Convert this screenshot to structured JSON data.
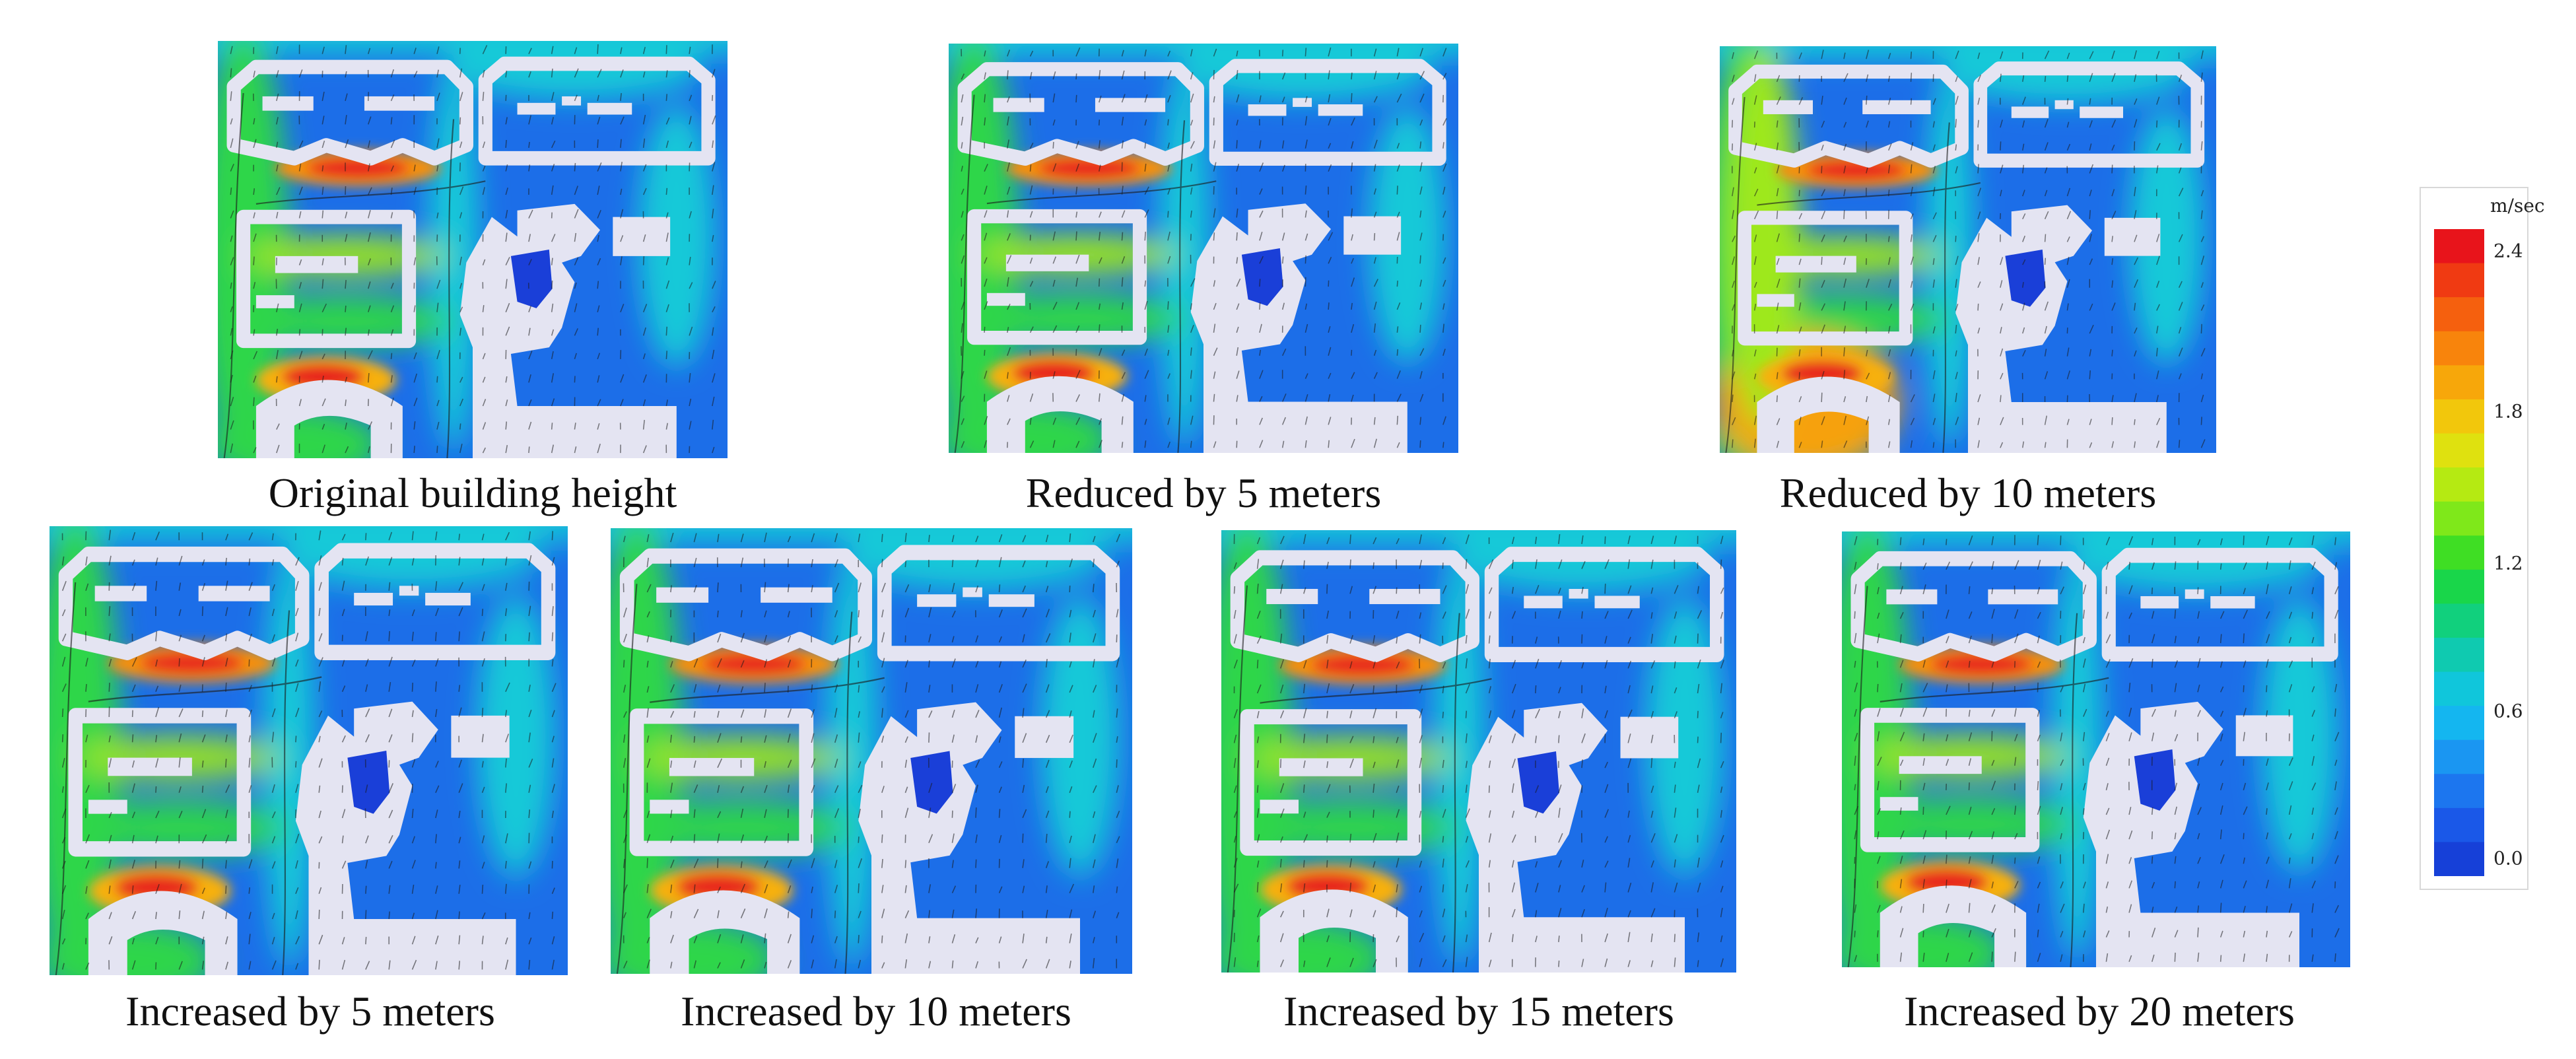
{
  "panels": [
    {
      "id": "original",
      "caption": "Original building height"
    },
    {
      "id": "minus5",
      "caption": "Reduced by 5 meters"
    },
    {
      "id": "minus10",
      "caption": "Reduced by 10 meters"
    },
    {
      "id": "plus5",
      "caption": "Increased by 5 meters"
    },
    {
      "id": "plus10",
      "caption": "Increased by 10 meters"
    },
    {
      "id": "plus15",
      "caption": "Increased by 15 meters"
    },
    {
      "id": "plus20",
      "caption": "Increased by 20 meters"
    }
  ],
  "legend": {
    "unit": "m/sec",
    "ticks": [
      "2.4",
      "1.8",
      "1.2",
      "0.6",
      "0.0"
    ],
    "colors": [
      "#e8141b",
      "#f03a12",
      "#f5600e",
      "#f8840c",
      "#f7a70a",
      "#f2c70c",
      "#dfe10f",
      "#b5ea12",
      "#7fe81a",
      "#3fde24",
      "#19d64a",
      "#11d07d",
      "#0fcab0",
      "#10c6db",
      "#14b6f0",
      "#1a96f2",
      "#1c76ef",
      "#1a58e8",
      "#1640d8"
    ]
  },
  "colors": {
    "building": "#e4e4f2",
    "low": "#1a4fe0",
    "high": "#e8281b"
  }
}
